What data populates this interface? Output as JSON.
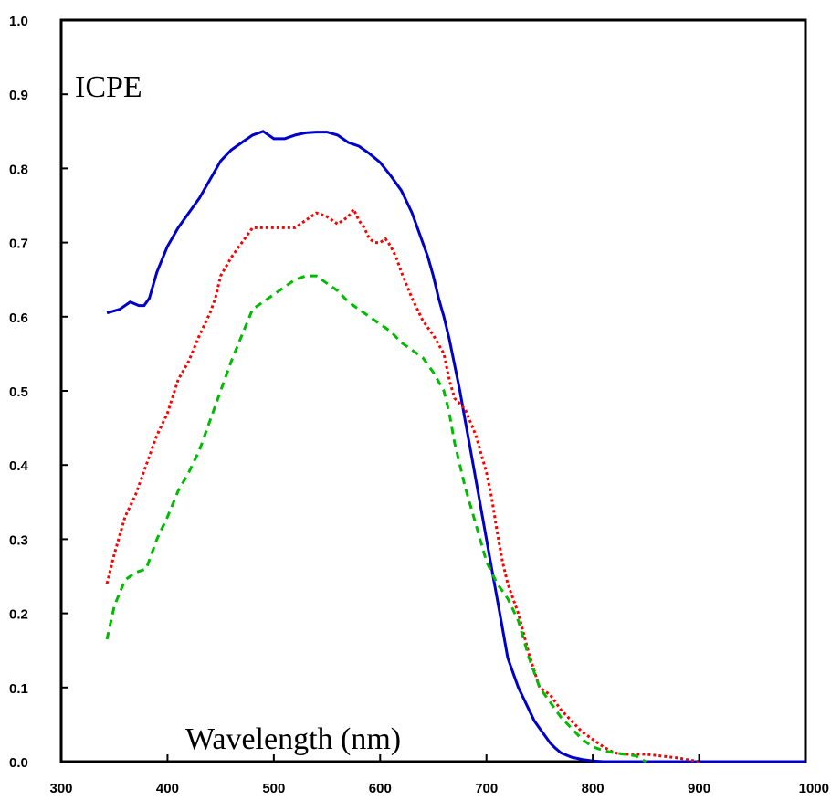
{
  "chart_data": {
    "type": "line",
    "title": "",
    "annotation": "ICPE",
    "xlabel": "Wavelength (nm)",
    "ylabel": "",
    "xlim": [
      300,
      1000
    ],
    "ylim": [
      0.0,
      1.0
    ],
    "x_ticks": [
      "300",
      "400",
      "500",
      "600",
      "700",
      "800",
      "900",
      "1000"
    ],
    "y_ticks": [
      "0.0",
      "0.1",
      "0.2",
      "0.3",
      "0.4",
      "0.5",
      "0.6",
      "0.7",
      "0.8",
      "0.9",
      "1.0"
    ],
    "grid": false,
    "legend": "none",
    "series": [
      {
        "color": "#0000cc",
        "style": "solid",
        "x": [
          343,
          355,
          365,
          373,
          378,
          383,
          390,
          400,
          410,
          420,
          430,
          440,
          450,
          460,
          470,
          480,
          490,
          500,
          510,
          520,
          530,
          540,
          550,
          560,
          570,
          580,
          590,
          600,
          610,
          620,
          625,
          630,
          640,
          645,
          650,
          655,
          660,
          665,
          670,
          675,
          680,
          685,
          690,
          695,
          700,
          705,
          710,
          715,
          720,
          725,
          730,
          735,
          740,
          745,
          750,
          755,
          760,
          765,
          770,
          780,
          790,
          800,
          810,
          830,
          850,
          870,
          900,
          950,
          1000
        ],
        "y": [
          0.605,
          0.61,
          0.62,
          0.615,
          0.615,
          0.625,
          0.66,
          0.695,
          0.72,
          0.74,
          0.76,
          0.785,
          0.81,
          0.825,
          0.835,
          0.845,
          0.85,
          0.84,
          0.84,
          0.845,
          0.848,
          0.849,
          0.849,
          0.845,
          0.835,
          0.83,
          0.82,
          0.808,
          0.79,
          0.77,
          0.755,
          0.74,
          0.7,
          0.68,
          0.655,
          0.625,
          0.6,
          0.57,
          0.535,
          0.5,
          0.46,
          0.42,
          0.38,
          0.34,
          0.3,
          0.26,
          0.22,
          0.18,
          0.14,
          0.12,
          0.1,
          0.085,
          0.07,
          0.055,
          0.045,
          0.035,
          0.025,
          0.018,
          0.012,
          0.006,
          0.003,
          0.001,
          0.0,
          0.0,
          0.0,
          0.0,
          0.0,
          0.0,
          0.0
        ]
      },
      {
        "color": "#ff0000",
        "style": "dotted",
        "x": [
          343,
          350,
          360,
          370,
          380,
          390,
          400,
          410,
          420,
          430,
          440,
          445,
          450,
          460,
          470,
          480,
          490,
          500,
          510,
          520,
          530,
          540,
          550,
          560,
          570,
          575,
          580,
          585,
          590,
          595,
          600,
          605,
          610,
          615,
          620,
          630,
          640,
          650,
          660,
          665,
          670,
          680,
          690,
          700,
          705,
          710,
          715,
          720,
          730,
          740,
          750,
          760,
          770,
          780,
          790,
          800,
          810,
          820,
          830,
          850,
          880,
          900
        ],
        "y": [
          0.24,
          0.28,
          0.33,
          0.36,
          0.4,
          0.44,
          0.47,
          0.515,
          0.54,
          0.575,
          0.605,
          0.625,
          0.655,
          0.68,
          0.7,
          0.72,
          0.72,
          0.72,
          0.72,
          0.72,
          0.73,
          0.74,
          0.735,
          0.725,
          0.735,
          0.745,
          0.73,
          0.72,
          0.705,
          0.7,
          0.7,
          0.705,
          0.695,
          0.68,
          0.66,
          0.625,
          0.595,
          0.575,
          0.55,
          0.515,
          0.49,
          0.475,
          0.44,
          0.39,
          0.355,
          0.31,
          0.27,
          0.24,
          0.2,
          0.145,
          0.1,
          0.09,
          0.07,
          0.055,
          0.04,
          0.03,
          0.02,
          0.012,
          0.01,
          0.01,
          0.005,
          0.0
        ]
      },
      {
        "color": "#00bb00",
        "style": "dashed",
        "x": [
          343,
          350,
          360,
          370,
          380,
          390,
          400,
          410,
          420,
          430,
          440,
          450,
          460,
          470,
          480,
          490,
          500,
          510,
          520,
          530,
          540,
          550,
          560,
          570,
          580,
          590,
          600,
          610,
          620,
          630,
          640,
          650,
          660,
          665,
          670,
          675,
          680,
          690,
          700,
          710,
          720,
          730,
          740,
          750,
          760,
          770,
          780,
          790,
          800,
          810,
          820,
          830,
          840,
          850
        ],
        "y": [
          0.165,
          0.21,
          0.245,
          0.255,
          0.26,
          0.3,
          0.33,
          0.365,
          0.39,
          0.42,
          0.46,
          0.5,
          0.54,
          0.575,
          0.61,
          0.62,
          0.63,
          0.64,
          0.65,
          0.655,
          0.655,
          0.645,
          0.635,
          0.62,
          0.61,
          0.6,
          0.59,
          0.58,
          0.565,
          0.555,
          0.545,
          0.525,
          0.5,
          0.47,
          0.43,
          0.4,
          0.37,
          0.32,
          0.27,
          0.24,
          0.22,
          0.19,
          0.14,
          0.1,
          0.08,
          0.06,
          0.045,
          0.03,
          0.02,
          0.015,
          0.012,
          0.01,
          0.008,
          0.0
        ]
      }
    ]
  }
}
